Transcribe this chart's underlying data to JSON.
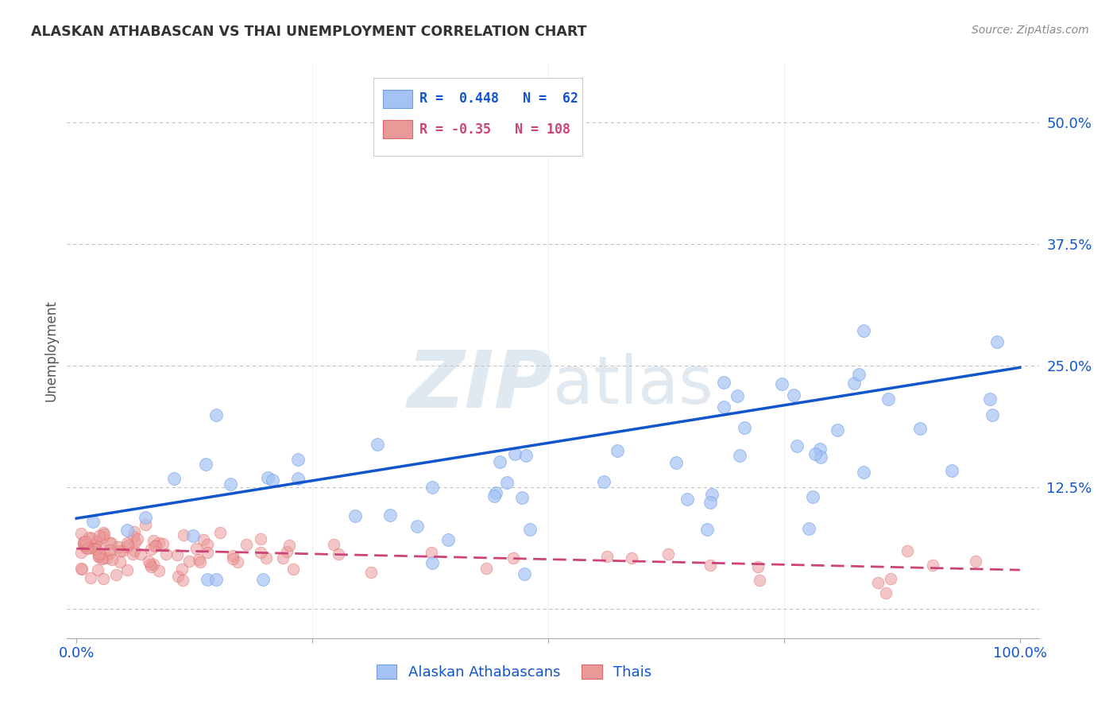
{
  "title": "ALASKAN ATHABASCAN VS THAI UNEMPLOYMENT CORRELATION CHART",
  "source": "Source: ZipAtlas.com",
  "ylabel": "Unemployment",
  "xlim": [
    -0.01,
    1.02
  ],
  "ylim": [
    -0.03,
    0.56
  ],
  "yticks": [
    0.0,
    0.125,
    0.25,
    0.375,
    0.5
  ],
  "ytick_labels": [
    "",
    "12.5%",
    "25.0%",
    "37.5%",
    "50.0%"
  ],
  "xticks": [
    0.0,
    0.25,
    0.5,
    0.75,
    1.0
  ],
  "xtick_labels": [
    "0.0%",
    "",
    "",
    "",
    "100.0%"
  ],
  "blue_R": 0.448,
  "blue_N": 62,
  "pink_R": -0.35,
  "pink_N": 108,
  "blue_color": "#a4c2f4",
  "blue_edge_color": "#6d9eeb",
  "pink_color": "#ea9999",
  "pink_edge_color": "#e06666",
  "blue_line_color": "#1155cc",
  "pink_line_color": "#cc4477",
  "tick_label_color": "#1155cc",
  "watermark_color": "#e0e8f0",
  "legend_blue_label": "Alaskan Athabascans",
  "legend_pink_label": "Thais",
  "blue_line_y0": 0.093,
  "blue_line_y1": 0.248,
  "pink_line_y0": 0.062,
  "pink_line_y1": 0.04,
  "background_color": "#ffffff",
  "grid_color": "#bbbbbb"
}
